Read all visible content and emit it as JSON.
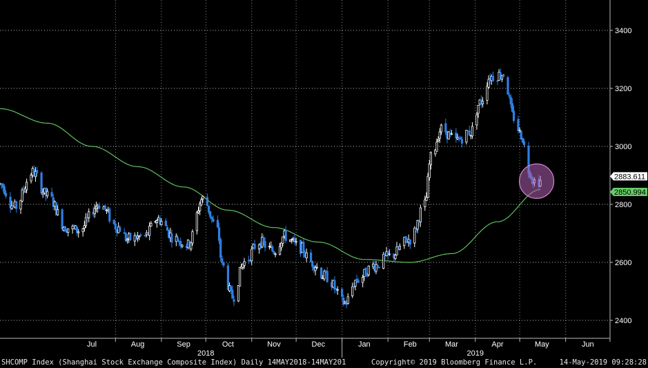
{
  "chart_data": {
    "type": "candlestick",
    "title": "",
    "x_range": [
      "2018-05-14",
      "2019-06-30"
    ],
    "ylim": [
      2350,
      3520
    ],
    "y_ticks": [
      2400,
      2600,
      2800,
      3000,
      3200,
      3400
    ],
    "y_tick_labels": [
      "2400",
      "2600",
      "2800",
      "3000",
      "3200",
      "3400"
    ],
    "month_labels": [
      {
        "label": "Jul",
        "date": "2018-07-15"
      },
      {
        "label": "Aug",
        "date": "2018-08-15"
      },
      {
        "label": "Sep",
        "date": "2018-09-15"
      },
      {
        "label": "Oct",
        "date": "2018-10-15"
      },
      {
        "label": "Nov",
        "date": "2018-11-15"
      },
      {
        "label": "Dec",
        "date": "2018-12-15"
      },
      {
        "label": "Jan",
        "date": "2019-01-15"
      },
      {
        "label": "Feb",
        "date": "2019-02-15"
      },
      {
        "label": "Mar",
        "date": "2019-03-15"
      },
      {
        "label": "Apr",
        "date": "2019-04-15"
      },
      {
        "label": "May",
        "date": "2019-05-15"
      },
      {
        "label": "Jun",
        "date": "2019-06-15"
      }
    ],
    "month_boundaries": [
      "2018-07-31",
      "2018-08-31",
      "2018-09-30",
      "2018-10-31",
      "2018-11-30",
      "2018-12-31",
      "2019-01-31",
      "2019-02-28",
      "2019-03-31",
      "2019-04-30",
      "2019-05-31",
      "2019-06-30"
    ],
    "year_labels": [
      {
        "label": "2018",
        "date": "2018-09-30"
      },
      {
        "label": "2019",
        "date": "2019-03-31"
      }
    ],
    "year_boundary": "2018-12-31",
    "price_anchors": [
      [
        "2018-05-14",
        2870
      ],
      [
        "2018-05-24",
        2790
      ],
      [
        "2018-06-05",
        2910
      ],
      [
        "2018-06-15",
        2830
      ],
      [
        "2018-06-28",
        2720
      ],
      [
        "2018-07-06",
        2710
      ],
      [
        "2018-07-20",
        2800
      ],
      [
        "2018-08-02",
        2720
      ],
      [
        "2018-08-08",
        2680
      ],
      [
        "2018-08-20",
        2690
      ],
      [
        "2018-08-28",
        2750
      ],
      [
        "2018-09-10",
        2680
      ],
      [
        "2018-09-18",
        2660
      ],
      [
        "2018-09-28",
        2820
      ],
      [
        "2018-10-08",
        2710
      ],
      [
        "2018-10-11",
        2590
      ],
      [
        "2018-10-18",
        2480
      ],
      [
        "2018-10-26",
        2600
      ],
      [
        "2018-11-05",
        2670
      ],
      [
        "2018-11-15",
        2640
      ],
      [
        "2018-11-22",
        2690
      ],
      [
        "2018-12-03",
        2650
      ],
      [
        "2018-12-10",
        2600
      ],
      [
        "2018-12-20",
        2550
      ],
      [
        "2019-01-02",
        2460
      ],
      [
        "2019-01-10",
        2540
      ],
      [
        "2019-01-22",
        2590
      ],
      [
        "2019-02-01",
        2620
      ],
      [
        "2019-02-15",
        2680
      ],
      [
        "2019-02-25",
        2800
      ],
      [
        "2019-03-01",
        2960
      ],
      [
        "2019-03-08",
        3060
      ],
      [
        "2019-03-18",
        3020
      ],
      [
        "2019-03-28",
        3050
      ],
      [
        "2019-04-03",
        3150
      ],
      [
        "2019-04-10",
        3240
      ],
      [
        "2019-04-19",
        3250
      ],
      [
        "2019-04-26",
        3100
      ],
      [
        "2019-05-01",
        3040
      ],
      [
        "2019-05-06",
        2920
      ],
      [
        "2019-05-10",
        2880
      ],
      [
        "2019-05-14",
        2880
      ]
    ],
    "ma_series": {
      "name": "",
      "anchors": [
        [
          "2018-05-14",
          3130
        ],
        [
          "2018-06-15",
          3080
        ],
        [
          "2018-07-15",
          3000
        ],
        [
          "2018-08-15",
          2930
        ],
        [
          "2018-09-15",
          2860
        ],
        [
          "2018-10-15",
          2780
        ],
        [
          "2018-11-15",
          2720
        ],
        [
          "2018-12-15",
          2670
        ],
        [
          "2019-01-15",
          2610
        ],
        [
          "2019-02-15",
          2600
        ],
        [
          "2019-03-15",
          2630
        ],
        [
          "2019-04-15",
          2740
        ],
        [
          "2019-05-14",
          2850.994
        ]
      ]
    },
    "last_price_label": "2883.611",
    "ma_label": "2850.994",
    "highlight_circle": {
      "date": "2019-05-10",
      "value": 2880
    },
    "colors": {
      "background": "#000000",
      "up": "#ffffff",
      "down": "#2f7fe0",
      "ma": "#5fc25f",
      "grid": "#ffffff",
      "circle_fill": "#b060b0",
      "circle_stroke": "#d08ad0",
      "price_label_bg": "#ffffff",
      "ma_label_bg": "#66cc66"
    }
  },
  "footer": {
    "left": "SHCOMP Index (Shanghai Stock Exchange Composite Index)  Daily 14MAY2018-14MAY201",
    "center": "Copyright© 2019 Bloomberg Finance L.P.",
    "right": "14-May-2019 09:28:28"
  }
}
